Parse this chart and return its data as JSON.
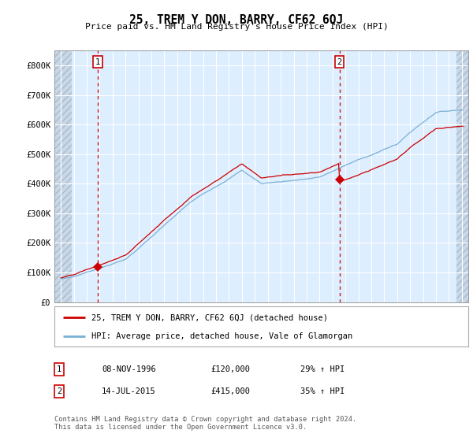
{
  "title": "25, TREM Y DON, BARRY, CF62 6QJ",
  "subtitle": "Price paid vs. HM Land Registry's House Price Index (HPI)",
  "ylim": [
    0,
    850000
  ],
  "yticks": [
    0,
    100000,
    200000,
    300000,
    400000,
    500000,
    600000,
    700000,
    800000
  ],
  "ytick_labels": [
    "£0",
    "£100K",
    "£200K",
    "£300K",
    "£400K",
    "£500K",
    "£600K",
    "£700K",
    "£800K"
  ],
  "line1_color": "#cc0000",
  "line2_color": "#7ab0d4",
  "annotation1_date": 1996.86,
  "annotation1_value": 120000,
  "annotation2_date": 2015.54,
  "annotation2_value": 415000,
  "legend_line1": "25, TREM Y DON, BARRY, CF62 6QJ (detached house)",
  "legend_line2": "HPI: Average price, detached house, Vale of Glamorgan",
  "table_row1": [
    "1",
    "08-NOV-1996",
    "£120,000",
    "29% ↑ HPI"
  ],
  "table_row2": [
    "2",
    "14-JUL-2015",
    "£415,000",
    "35% ↑ HPI"
  ],
  "footer": "Contains HM Land Registry data © Crown copyright and database right 2024.\nThis data is licensed under the Open Government Licence v3.0.",
  "plot_bg_color": "#ddeeff",
  "grid_color": "#ffffff",
  "hatch_color": "#c8d8e8"
}
